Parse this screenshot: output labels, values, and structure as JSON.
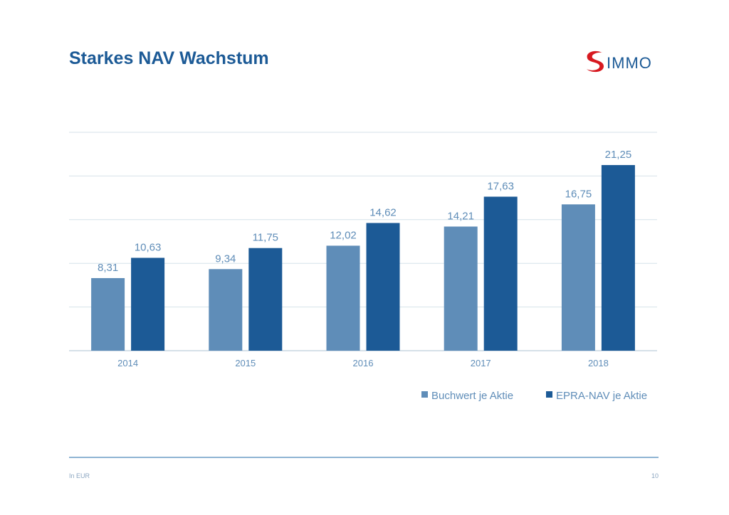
{
  "title": "Starkes NAV Wachstum",
  "logo": {
    "text": "IMMO",
    "brand": "S IMMO"
  },
  "footer": {
    "note": "In EUR",
    "page": "10"
  },
  "chart_data": {
    "type": "bar",
    "categories": [
      "2014",
      "2015",
      "2016",
      "2017",
      "2018"
    ],
    "series": [
      {
        "name": "Buchwert je Aktie",
        "values": [
          8.31,
          9.34,
          12.02,
          14.21,
          16.75
        ],
        "labels": [
          "8,31",
          "9,34",
          "12,02",
          "14,21",
          "16,75"
        ],
        "color": "#5f8db8"
      },
      {
        "name": "EPRA-NAV je Aktie",
        "values": [
          10.63,
          11.75,
          14.62,
          17.63,
          21.25
        ],
        "labels": [
          "10,63",
          "11,75",
          "14,62",
          "17,63",
          "21,25"
        ],
        "color": "#1c5a96"
      }
    ],
    "ylim": [
      0,
      25
    ],
    "grid": true,
    "legend": "bottom-right",
    "xlabel": "",
    "ylabel": ""
  }
}
